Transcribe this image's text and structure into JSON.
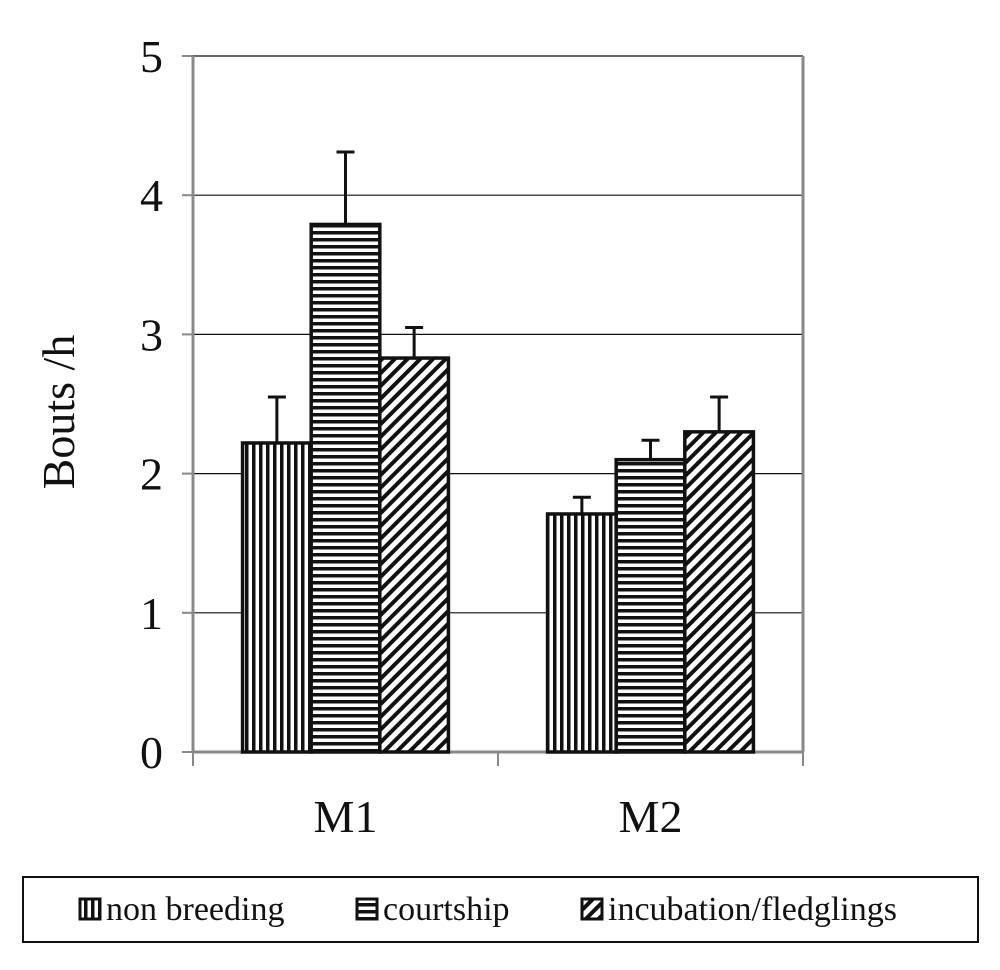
{
  "chart_data": {
    "type": "bar",
    "categories": [
      "M1",
      "M2"
    ],
    "ylabel": "Bouts /h",
    "xlabel": "",
    "ylim": [
      0,
      5
    ],
    "yticks": [
      "0",
      "1",
      "2",
      "3",
      "4",
      "5"
    ],
    "grid": true,
    "legend_position": "bottom",
    "series": [
      {
        "name": "non breeding",
        "pattern": "vertical-lines",
        "values": [
          2.22,
          1.71
        ],
        "errors": [
          0.33,
          0.12
        ]
      },
      {
        "name": "courtship",
        "pattern": "horizontal-lines",
        "values": [
          3.79,
          2.1
        ],
        "errors": [
          0.52,
          0.14
        ]
      },
      {
        "name": "incubation/fledglings",
        "pattern": "diagonal-lines",
        "values": [
          2.83,
          2.3
        ],
        "errors": [
          0.22,
          0.25
        ]
      }
    ]
  }
}
